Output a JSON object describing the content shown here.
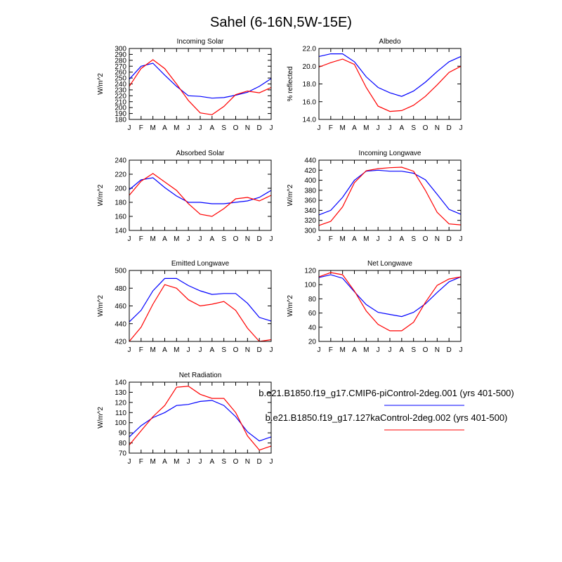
{
  "title": "Sahel (6-16N,5W-15E)",
  "colors": {
    "series1": "#0000ff",
    "series2": "#ff0000"
  },
  "legend": {
    "entries": [
      {
        "label": "b.e21.B1850.f19_g17.CMIP6-piControl-2deg.001 (yrs 401-500)",
        "color": "#0000ff"
      },
      {
        "label": "b.e21.B1850.f19_g17.127kaControl-2deg.002 (yrs 401-500)",
        "color": "#ff0000"
      }
    ]
  },
  "chart_data": [
    {
      "type": "line",
      "title": "Incoming Solar",
      "ylabel": "W/m^2",
      "categories": [
        "J",
        "F",
        "M",
        "A",
        "M",
        "J",
        "J",
        "A",
        "S",
        "O",
        "N",
        "D",
        "J"
      ],
      "ylim": [
        180,
        300
      ],
      "yticks": [
        "180",
        "190",
        "200",
        "210",
        "220",
        "230",
        "240",
        "250",
        "260",
        "270",
        "280",
        "290",
        "300"
      ],
      "series": [
        {
          "name": "b.e21.B1850.f19_g17.CMIP6-piControl-2deg.001 (yrs 401-500)",
          "values": [
            248,
            270,
            275,
            255,
            236,
            220,
            219,
            216,
            217,
            221,
            226,
            236,
            249
          ]
        },
        {
          "name": "b.e21.B1850.f19_g17.127kaControl-2deg.002 (yrs 401-500)",
          "values": [
            236,
            266,
            281,
            266,
            240,
            212,
            191,
            188,
            202,
            222,
            228,
            225,
            234
          ]
        }
      ]
    },
    {
      "type": "line",
      "title": "Albedo",
      "ylabel": "% reflected",
      "categories": [
        "J",
        "F",
        "M",
        "A",
        "M",
        "J",
        "J",
        "A",
        "S",
        "O",
        "N",
        "D",
        "J"
      ],
      "ylim": [
        14,
        22
      ],
      "yticks": [
        "14.0",
        "16.0",
        "18.0",
        "20.0",
        "22.0"
      ],
      "series": [
        {
          "name": "b.e21.B1850.f19_g17.CMIP6-piControl-2deg.001 (yrs 401-500)",
          "values": [
            21.1,
            21.4,
            21.4,
            20.5,
            18.8,
            17.6,
            17.0,
            16.6,
            17.2,
            18.2,
            19.4,
            20.5,
            21.1
          ]
        },
        {
          "name": "b.e21.B1850.f19_g17.127kaControl-2deg.002 (yrs 401-500)",
          "values": [
            19.9,
            20.4,
            20.8,
            20.2,
            17.6,
            15.5,
            14.9,
            15.0,
            15.6,
            16.6,
            17.9,
            19.3,
            20.0
          ]
        }
      ]
    },
    {
      "type": "line",
      "title": "Absorbed Solar",
      "ylabel": "W/m^2",
      "categories": [
        "J",
        "F",
        "M",
        "A",
        "M",
        "J",
        "J",
        "A",
        "S",
        "O",
        "N",
        "D",
        "J"
      ],
      "ylim": [
        140,
        240
      ],
      "yticks": [
        "140",
        "160",
        "180",
        "200",
        "220",
        "240"
      ],
      "series": [
        {
          "name": "b.e21.B1850.f19_g17.CMIP6-piControl-2deg.001 (yrs 401-500)",
          "values": [
            198,
            212,
            215,
            201,
            189,
            180,
            180,
            178,
            178,
            180,
            182,
            187,
            197
          ]
        },
        {
          "name": "b.e21.B1850.f19_g17.127kaControl-2deg.002 (yrs 401-500)",
          "values": [
            190,
            210,
            221,
            209,
            197,
            178,
            163,
            160,
            171,
            185,
            187,
            182,
            190
          ]
        }
      ]
    },
    {
      "type": "line",
      "title": "Incoming Longwave",
      "ylabel": "W/m^2",
      "categories": [
        "J",
        "F",
        "M",
        "A",
        "M",
        "J",
        "J",
        "A",
        "S",
        "O",
        "N",
        "D",
        "J"
      ],
      "ylim": [
        300,
        440
      ],
      "yticks": [
        "300",
        "320",
        "340",
        "360",
        "380",
        "400",
        "420",
        "440"
      ],
      "series": [
        {
          "name": "b.e21.B1850.f19_g17.CMIP6-piControl-2deg.001 (yrs 401-500)",
          "values": [
            331,
            340,
            366,
            400,
            418,
            420,
            418,
            418,
            414,
            401,
            372,
            342,
            332
          ]
        },
        {
          "name": "b.e21.B1850.f19_g17.127kaControl-2deg.002 (yrs 401-500)",
          "values": [
            310,
            318,
            347,
            395,
            419,
            423,
            425,
            426,
            418,
            380,
            336,
            313,
            311
          ]
        }
      ]
    },
    {
      "type": "line",
      "title": "Emitted Longwave",
      "ylabel": "W/m^2",
      "categories": [
        "J",
        "F",
        "M",
        "A",
        "M",
        "J",
        "J",
        "A",
        "S",
        "O",
        "N",
        "D",
        "J"
      ],
      "ylim": [
        420,
        500
      ],
      "yticks": [
        "420",
        "440",
        "460",
        "480",
        "500"
      ],
      "series": [
        {
          "name": "b.e21.B1850.f19_g17.CMIP6-piControl-2deg.001 (yrs 401-500)",
          "values": [
            442,
            455,
            477,
            491,
            491,
            483,
            477,
            473,
            474,
            474,
            463,
            447,
            443
          ]
        },
        {
          "name": "b.e21.B1850.f19_g17.127kaControl-2deg.002 (yrs 401-500)",
          "values": [
            420,
            436,
            462,
            484,
            480,
            467,
            460,
            462,
            465,
            455,
            435,
            420,
            422
          ]
        }
      ]
    },
    {
      "type": "line",
      "title": "Net Longwave",
      "ylabel": "W/m^2",
      "categories": [
        "J",
        "F",
        "M",
        "A",
        "M",
        "J",
        "J",
        "A",
        "S",
        "O",
        "N",
        "D",
        "J"
      ],
      "ylim": [
        20,
        120
      ],
      "yticks": [
        "20",
        "40",
        "60",
        "80",
        "100",
        "120"
      ],
      "series": [
        {
          "name": "b.e21.B1850.f19_g17.CMIP6-piControl-2deg.001 (yrs 401-500)",
          "values": [
            110,
            114,
            109,
            90,
            72,
            61,
            58,
            55,
            61,
            73,
            89,
            104,
            111
          ]
        },
        {
          "name": "b.e21.B1850.f19_g17.127kaControl-2deg.002 (yrs 401-500)",
          "values": [
            111,
            117,
            114,
            91,
            63,
            44,
            35,
            35,
            47,
            75,
            99,
            108,
            111
          ]
        }
      ]
    },
    {
      "type": "line",
      "title": "Net Radiation",
      "ylabel": "W/m^2",
      "categories": [
        "J",
        "F",
        "M",
        "A",
        "M",
        "J",
        "J",
        "A",
        "S",
        "O",
        "N",
        "D",
        "J"
      ],
      "ylim": [
        70,
        140
      ],
      "yticks": [
        "70",
        "80",
        "90",
        "100",
        "110",
        "120",
        "130",
        "140"
      ],
      "series": [
        {
          "name": "b.e21.B1850.f19_g17.CMIP6-piControl-2deg.001 (yrs 401-500)",
          "values": [
            86,
            97,
            105,
            110,
            117,
            118,
            121,
            122,
            117,
            106,
            91,
            82,
            86
          ]
        },
        {
          "name": "b.e21.B1850.f19_g17.127kaControl-2deg.002 (yrs 401-500)",
          "values": [
            78,
            92,
            106,
            117,
            135,
            136,
            128,
            124,
            124,
            110,
            87,
            73,
            77
          ]
        }
      ]
    }
  ]
}
